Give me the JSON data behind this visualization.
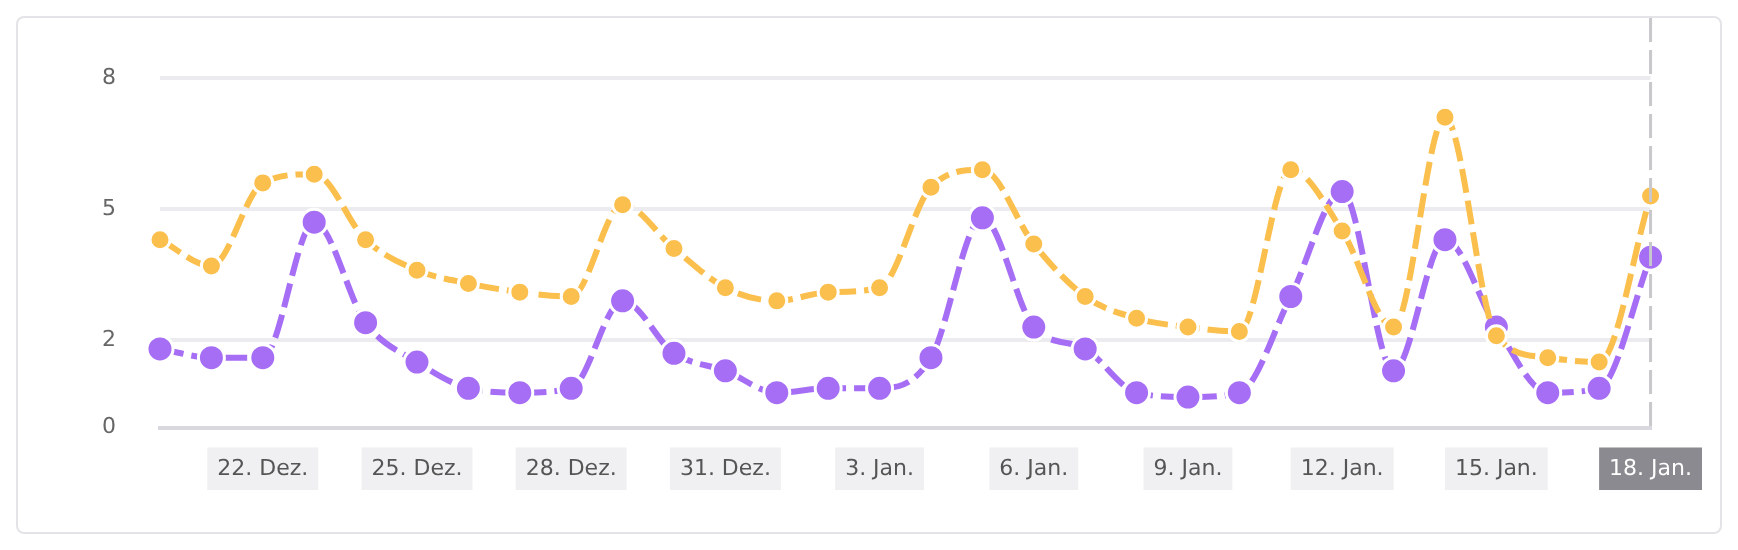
{
  "chart_data": {
    "type": "line",
    "categories": [
      null,
      null,
      "22. Dez.",
      null,
      null,
      "25. Dez.",
      null,
      null,
      "28. Dez.",
      null,
      null,
      "31. Dez.",
      null,
      null,
      "3. Jan.",
      null,
      null,
      "6. Jan.",
      null,
      null,
      "9. Jan.",
      null,
      null,
      "12. Jan.",
      null,
      null,
      "15. Jan.",
      null,
      null,
      "18. Jan."
    ],
    "series": [
      {
        "color": "#fbbf4d",
        "values": [
          4.3,
          3.7,
          5.6,
          5.8,
          4.3,
          3.6,
          3.3,
          3.1,
          3.0,
          5.1,
          4.1,
          3.2,
          2.9,
          3.1,
          3.2,
          5.5,
          5.9,
          4.2,
          3.0,
          2.5,
          2.3,
          2.2,
          5.9,
          4.5,
          2.3,
          7.1,
          2.1,
          1.6,
          1.5,
          5.3
        ]
      },
      {
        "color": "#a66ef5",
        "values": [
          1.8,
          1.6,
          1.6,
          4.7,
          2.4,
          1.5,
          0.9,
          0.8,
          0.9,
          2.9,
          1.7,
          1.3,
          0.8,
          0.9,
          0.9,
          1.6,
          4.8,
          2.3,
          1.8,
          0.8,
          0.7,
          0.8,
          3.0,
          5.4,
          1.3,
          4.3,
          2.3,
          0.8,
          0.9,
          3.9
        ]
      }
    ],
    "ylim": [
      0,
      8
    ],
    "yticks": [
      0,
      2,
      5,
      8
    ],
    "grid": "y",
    "legend": false,
    "marker": "circle",
    "line_style": "dashed",
    "ref_lines": [
      {
        "axis": "x",
        "value": "18. Jan.",
        "color": "#c8c8cc",
        "line_style": "dashed"
      }
    ]
  }
}
